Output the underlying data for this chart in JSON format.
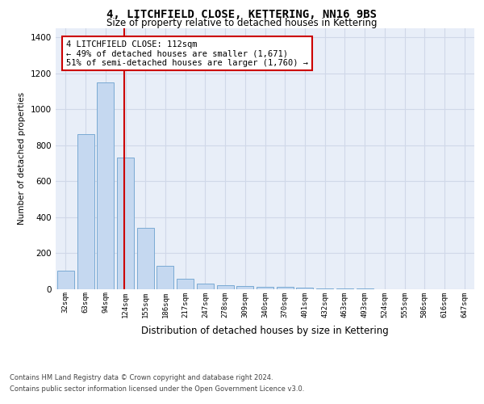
{
  "title": "4, LITCHFIELD CLOSE, KETTERING, NN16 9BS",
  "subtitle": "Size of property relative to detached houses in Kettering",
  "xlabel": "Distribution of detached houses by size in Kettering",
  "ylabel": "Number of detached properties",
  "footer_line1": "Contains HM Land Registry data © Crown copyright and database right 2024.",
  "footer_line2": "Contains public sector information licensed under the Open Government Licence v3.0.",
  "bar_color": "#c5d8f0",
  "bar_edge_color": "#7aaad4",
  "grid_color": "#d0d8e8",
  "background_color": "#e8eef8",
  "vline_color": "#cc0000",
  "vline_x": 2.925,
  "annotation_text": "4 LITCHFIELD CLOSE: 112sqm\n← 49% of detached houses are smaller (1,671)\n51% of semi-detached houses are larger (1,760) →",
  "annotation_box_color": "#ffffff",
  "annotation_box_edge": "#cc0000",
  "bins": [
    "32sqm",
    "63sqm",
    "94sqm",
    "124sqm",
    "155sqm",
    "186sqm",
    "217sqm",
    "247sqm",
    "278sqm",
    "309sqm",
    "340sqm",
    "370sqm",
    "401sqm",
    "432sqm",
    "463sqm",
    "493sqm",
    "524sqm",
    "555sqm",
    "586sqm",
    "616sqm",
    "647sqm"
  ],
  "values": [
    100,
    860,
    1150,
    730,
    340,
    130,
    55,
    30,
    20,
    15,
    10,
    10,
    5,
    2,
    1,
    1,
    0,
    0,
    0,
    0,
    0
  ],
  "ylim": [
    0,
    1450
  ],
  "yticks": [
    0,
    200,
    400,
    600,
    800,
    1000,
    1200,
    1400
  ]
}
